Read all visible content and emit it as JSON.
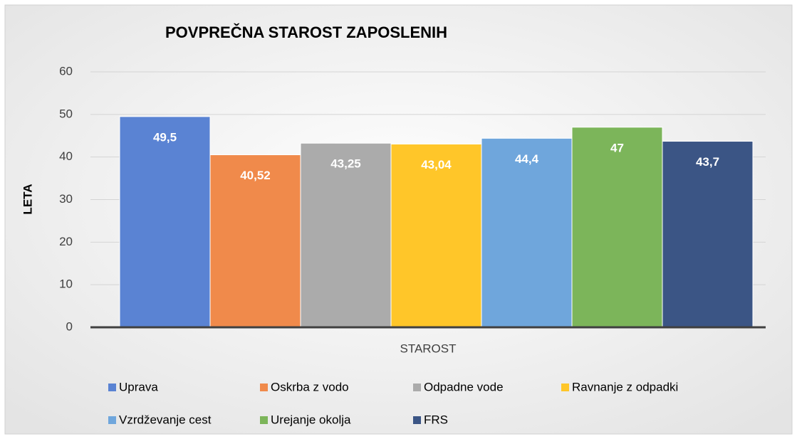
{
  "chart_data": {
    "type": "bar",
    "title": "POVPREČNA STAROST ZAPOSLENIH",
    "y_label": "LETA",
    "categories": [
      "STAROST"
    ],
    "series": [
      {
        "name": "Uprava",
        "color": "#5a83d3",
        "values": [
          49.5
        ],
        "value_labels": [
          "49,5"
        ]
      },
      {
        "name": "Oskrba z vodo",
        "color": "#f08a4b",
        "values": [
          40.52
        ],
        "value_labels": [
          "40,52"
        ]
      },
      {
        "name": "Odpadne vode",
        "color": "#ababab",
        "values": [
          43.25
        ],
        "value_labels": [
          "43,25"
        ]
      },
      {
        "name": "Ravnanje z odpadki",
        "color": "#ffc629",
        "values": [
          43.04
        ],
        "value_labels": [
          "43,04"
        ]
      },
      {
        "name": "Vzrdževanje cest",
        "color": "#6fa6dc",
        "values": [
          44.4
        ],
        "value_labels": [
          "44,4"
        ]
      },
      {
        "name": "Urejanje okolja",
        "color": "#7cb55a",
        "values": [
          47
        ],
        "value_labels": [
          "47"
        ]
      },
      {
        "name": "FRS",
        "color": "#3b5585",
        "values": [
          43.7
        ],
        "value_labels": [
          "43,7"
        ]
      }
    ],
    "ylim": [
      0,
      60
    ],
    "yticks": [
      0,
      10,
      20,
      30,
      40,
      50,
      60
    ],
    "grid": true
  }
}
